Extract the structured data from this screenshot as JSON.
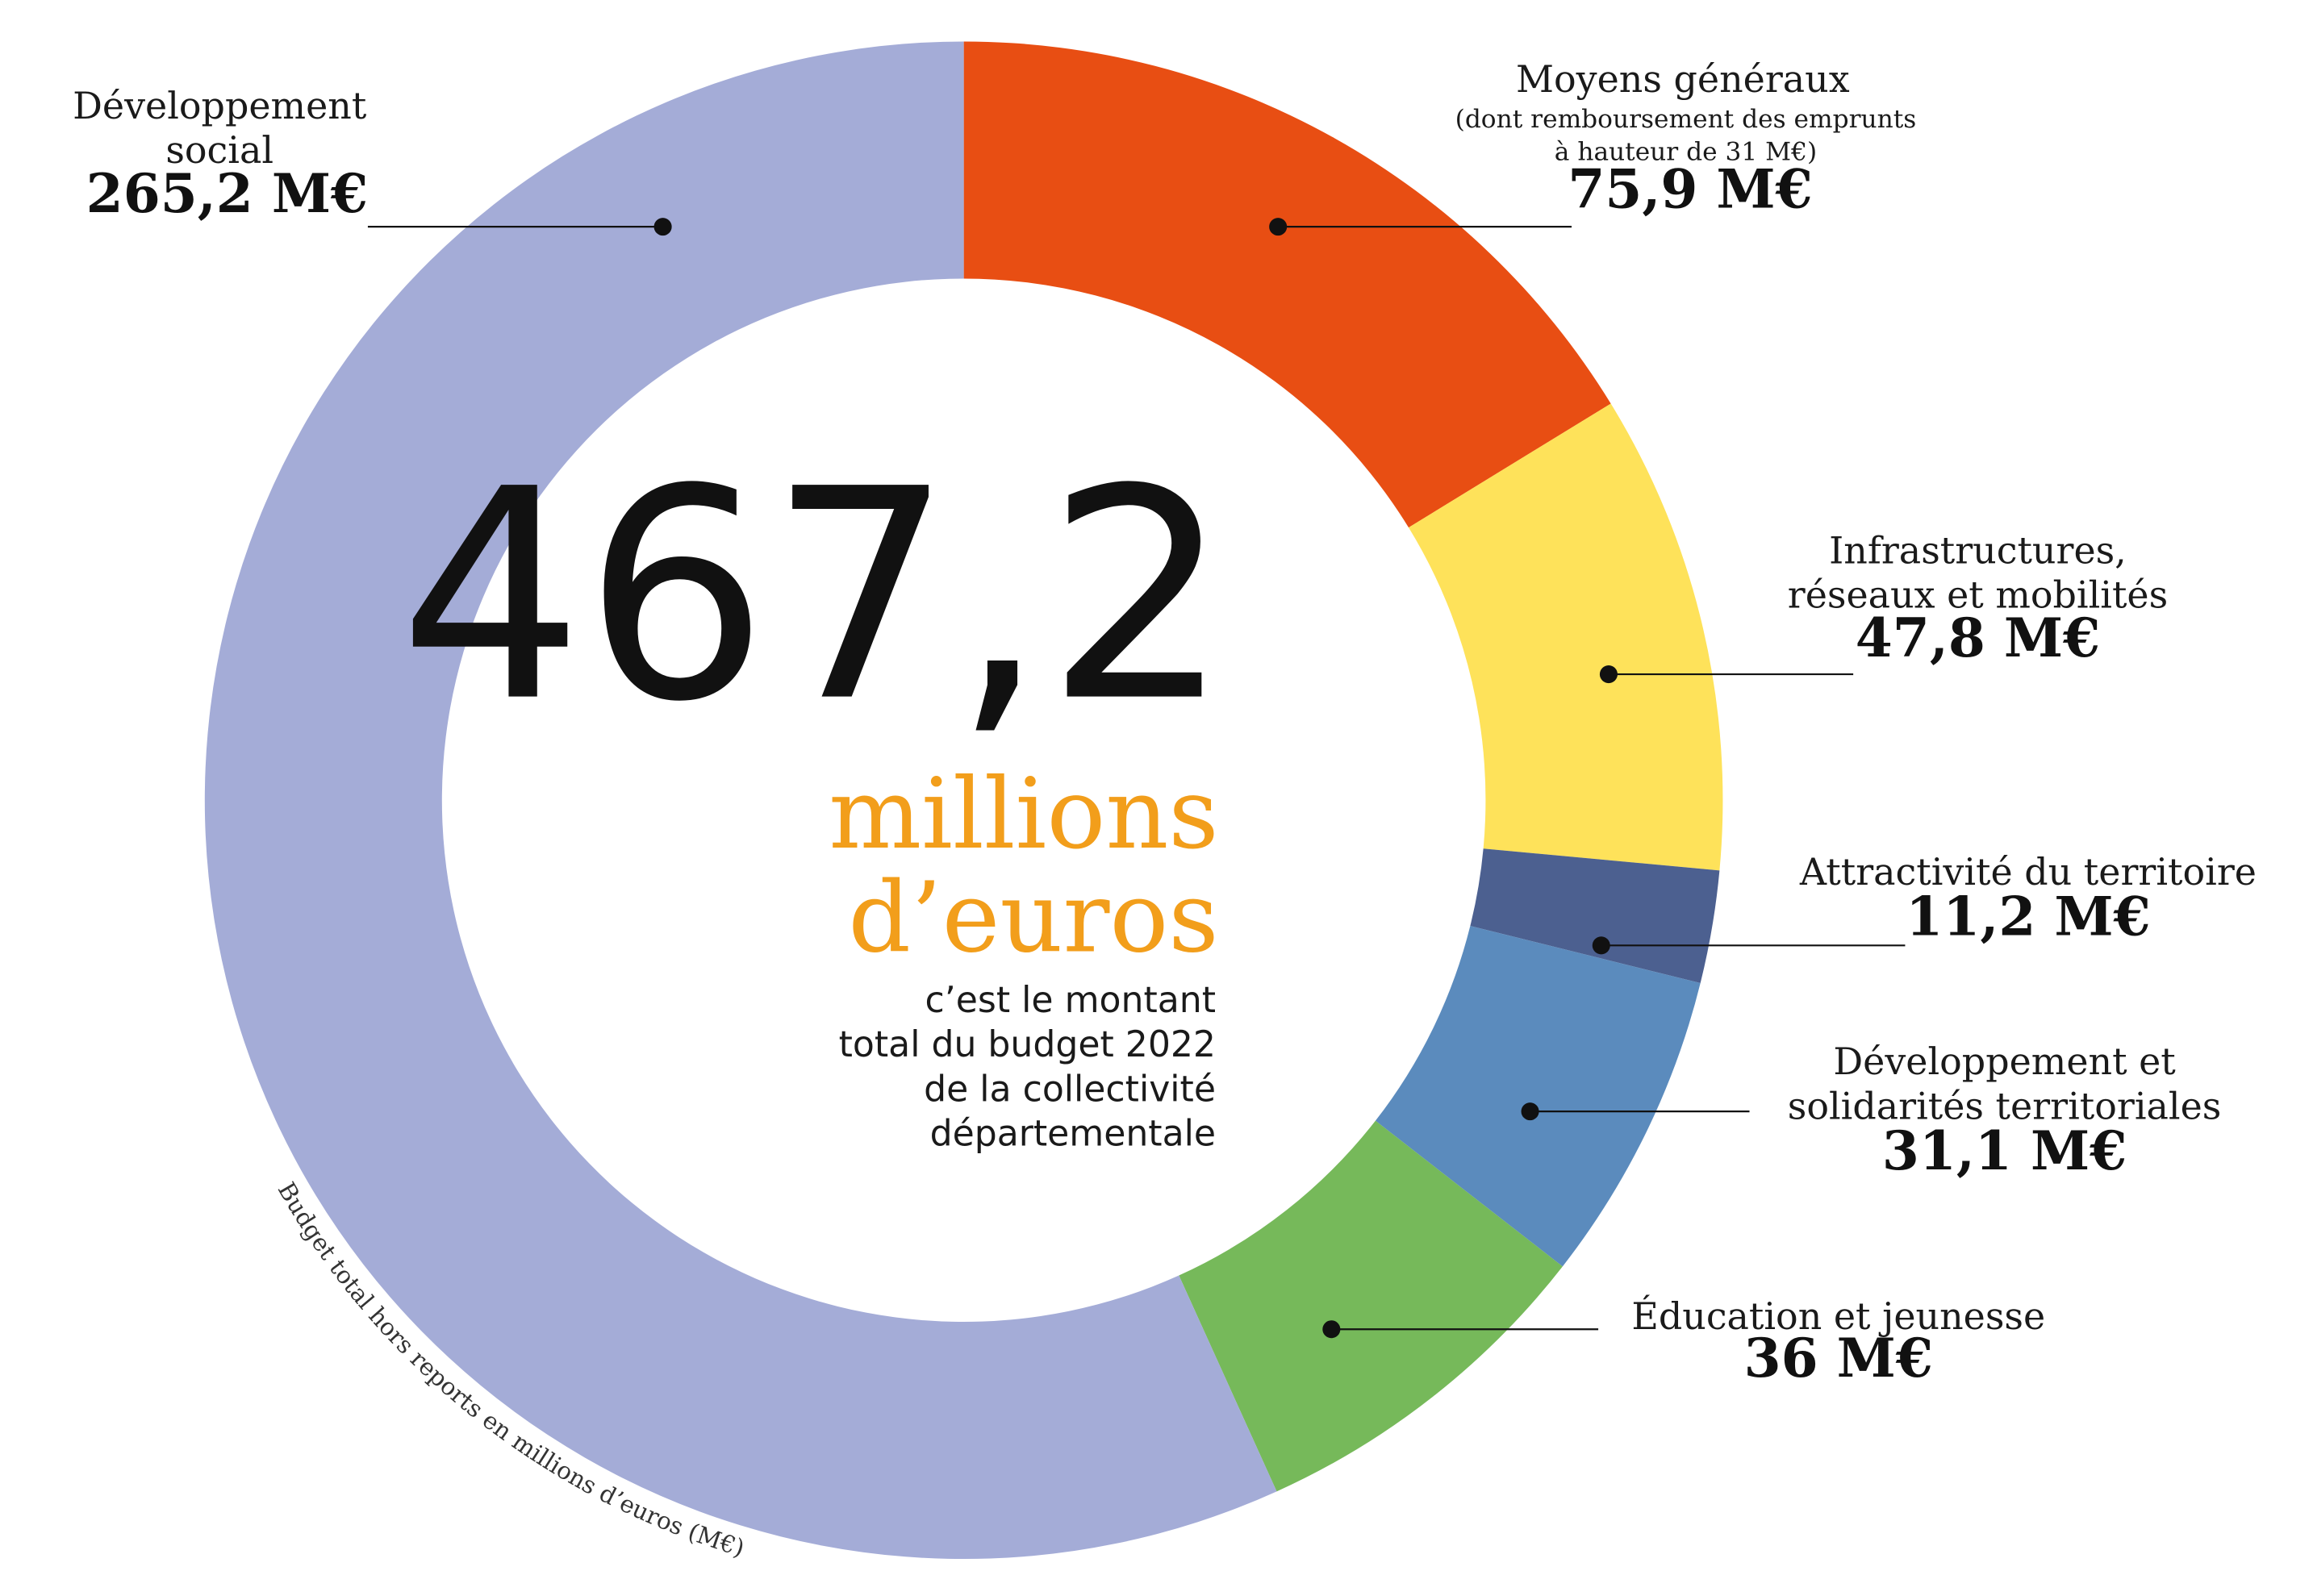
{
  "chart_data": {
    "type": "donut",
    "center_value": "467,2",
    "center_unit": "millions d’euros",
    "caption": "c’est le montant total du budget 2022 de la collectivité départementale",
    "categories": [
      "Moyens généraux",
      "Infrastructures, réseaux et mobilités",
      "Attractivité du territoire",
      "Développement et solidarités territoriales",
      "Éducation et jeunesse",
      "Développement social"
    ],
    "values": [
      75.9,
      47.8,
      11.2,
      31.1,
      36,
      265.2
    ],
    "value_labels": [
      "75,9 M€",
      "47,8 M€",
      "11,2 M€",
      "31,1 M€",
      "36 M€",
      "265,2 M€"
    ],
    "colors": [
      "#e84e13",
      "#fee25a",
      "#4c6090",
      "#5b8bbd",
      "#76b95a",
      "#a4acd7"
    ],
    "category_note": "(dont remboursement des emprunts à hauteur de 31 M€)",
    "footnote": "Budget total hors reports en millions d’euros (M€)"
  }
}
